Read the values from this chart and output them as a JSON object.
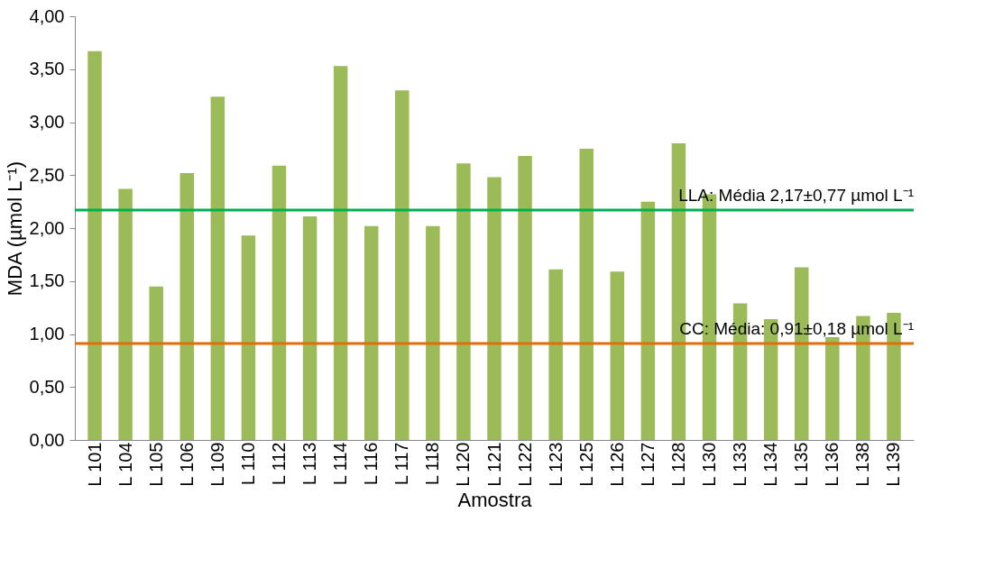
{
  "chart_data": {
    "type": "bar",
    "xlabel": "Amostra",
    "ylabel": "MDA (µmol L⁻¹)",
    "categories": [
      "L 101",
      "L 104",
      "L 105",
      "L 106",
      "L 109",
      "L 110",
      "L 112",
      "L 113",
      "L 114",
      "L 116",
      "L 117",
      "L 118",
      "L 120",
      "L 121",
      "L 122",
      "L 123",
      "L 125",
      "L 126",
      "L 127",
      "L 128",
      "L 130",
      "L 133",
      "L 134",
      "L 135",
      "L 136",
      "L 138",
      "L 139"
    ],
    "values": [
      3.67,
      2.37,
      1.45,
      2.52,
      3.24,
      1.93,
      2.59,
      2.11,
      3.53,
      2.02,
      3.3,
      2.02,
      2.61,
      2.48,
      2.68,
      1.61,
      2.75,
      1.59,
      2.25,
      2.8,
      2.32,
      1.29,
      1.14,
      1.63,
      0.97,
      1.17,
      1.2
    ],
    "color": "#9bbb59",
    "ylim": [
      0,
      4
    ],
    "yticks": [
      {
        "value": 0,
        "label": "0,00"
      },
      {
        "value": 0.5,
        "label": "0,50"
      },
      {
        "value": 1,
        "label": "1,00"
      },
      {
        "value": 1.5,
        "label": "1,50"
      },
      {
        "value": 2,
        "label": "2,00"
      },
      {
        "value": 2.5,
        "label": "2,50"
      },
      {
        "value": 3,
        "label": "3,00"
      },
      {
        "value": 3.5,
        "label": "3,50"
      },
      {
        "value": 4,
        "label": "4,00"
      }
    ],
    "ref_lines": [
      {
        "axis": "y",
        "value": 2.17,
        "label": "LLA: Média 2,17±0,77 µmol L⁻¹",
        "color": "#00b050"
      },
      {
        "axis": "y",
        "value": 0.91,
        "label": "CC: Média: 0,91±0,18 µmol L⁻¹",
        "color": "#e46c0a"
      }
    ],
    "grid": false
  }
}
